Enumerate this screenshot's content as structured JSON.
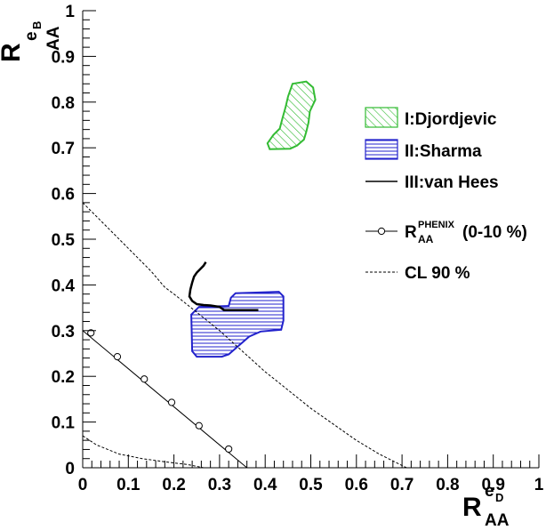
{
  "chart_data": {
    "type": "scatter",
    "xlim": [
      0,
      1
    ],
    "ylim": [
      0,
      1
    ],
    "x_ticks": [
      "0",
      "0.1",
      "0.2",
      "0.3",
      "0.4",
      "0.5",
      "0.6",
      "0.7",
      "0.8",
      "0.9",
      "1"
    ],
    "y_ticks": [
      "0",
      "0.1",
      "0.2",
      "0.3",
      "0.4",
      "0.5",
      "0.6",
      "0.7",
      "0.8",
      "0.9",
      "1"
    ],
    "x_axis_label": {
      "main": "R",
      "sub": "AA",
      "sup": "e",
      "sup_sub": "D"
    },
    "y_axis_label": {
      "main": "R",
      "sub": "AA",
      "sup": "e",
      "sup_sub": "B"
    },
    "grid": false,
    "legend_position": "right",
    "legend": [
      {
        "id": "djordjevic",
        "label": "I:Djordjevic"
      },
      {
        "id": "sharma",
        "label": "II:Sharma"
      },
      {
        "id": "vanhees",
        "label": "III:van Hees"
      },
      {
        "id": "phenix",
        "label_main": "R",
        "label_sup": "PHENIX",
        "label_sub": "AA",
        "label_suffix": "(0-10 %)"
      },
      {
        "id": "cl90",
        "label": "CL 90 %"
      }
    ],
    "series": [
      {
        "name": "I:Djordjevic",
        "kind": "hatched-region",
        "color": "#33bb33",
        "polygon": [
          [
            0.46,
            0.84
          ],
          [
            0.49,
            0.845
          ],
          [
            0.505,
            0.832
          ],
          [
            0.51,
            0.805
          ],
          [
            0.498,
            0.78
          ],
          [
            0.495,
            0.755
          ],
          [
            0.49,
            0.735
          ],
          [
            0.485,
            0.718
          ],
          [
            0.47,
            0.705
          ],
          [
            0.455,
            0.698
          ],
          [
            0.41,
            0.697
          ],
          [
            0.405,
            0.71
          ],
          [
            0.418,
            0.728
          ],
          [
            0.432,
            0.742
          ],
          [
            0.438,
            0.765
          ],
          [
            0.445,
            0.79
          ],
          [
            0.45,
            0.812
          ]
        ]
      },
      {
        "name": "II:Sharma",
        "kind": "hatched-region",
        "color": "#2222cc",
        "polygon": [
          [
            0.335,
            0.382
          ],
          [
            0.43,
            0.385
          ],
          [
            0.44,
            0.375
          ],
          [
            0.44,
            0.322
          ],
          [
            0.435,
            0.302
          ],
          [
            0.39,
            0.298
          ],
          [
            0.365,
            0.287
          ],
          [
            0.32,
            0.248
          ],
          [
            0.305,
            0.243
          ],
          [
            0.25,
            0.243
          ],
          [
            0.24,
            0.255
          ],
          [
            0.238,
            0.335
          ],
          [
            0.255,
            0.352
          ],
          [
            0.32,
            0.354
          ],
          [
            0.325,
            0.372
          ]
        ]
      },
      {
        "name": "III:van Hees",
        "kind": "line",
        "color": "#000000",
        "points": [
          [
            0.27,
            0.45
          ],
          [
            0.265,
            0.442
          ],
          [
            0.258,
            0.435
          ],
          [
            0.25,
            0.427
          ],
          [
            0.244,
            0.418
          ],
          [
            0.24,
            0.405
          ],
          [
            0.236,
            0.39
          ],
          [
            0.234,
            0.375
          ],
          [
            0.24,
            0.365
          ],
          [
            0.25,
            0.358
          ],
          [
            0.265,
            0.356
          ],
          [
            0.28,
            0.355
          ],
          [
            0.3,
            0.352
          ],
          [
            0.31,
            0.345
          ],
          [
            0.33,
            0.345
          ],
          [
            0.36,
            0.345
          ],
          [
            0.385,
            0.345
          ]
        ]
      },
      {
        "name": "R_AA^PHENIX (0-10 %)",
        "kind": "line-markers",
        "color": "#000000",
        "line": [
          [
            0,
            0.3
          ],
          [
            0.36,
            0.0
          ]
        ],
        "points": [
          [
            0.018,
            0.295
          ],
          [
            0.076,
            0.243
          ],
          [
            0.135,
            0.194
          ],
          [
            0.195,
            0.143
          ],
          [
            0.255,
            0.092
          ],
          [
            0.32,
            0.041
          ]
        ]
      },
      {
        "name": "CL 90 % (upper)",
        "kind": "dashed-line",
        "color": "#000000",
        "points": [
          [
            0,
            0.58
          ],
          [
            0.02,
            0.56
          ],
          [
            0.05,
            0.53
          ],
          [
            0.1,
            0.48
          ],
          [
            0.15,
            0.43
          ],
          [
            0.18,
            0.395
          ],
          [
            0.2,
            0.38
          ],
          [
            0.25,
            0.34
          ],
          [
            0.3,
            0.3
          ],
          [
            0.35,
            0.255
          ],
          [
            0.4,
            0.21
          ],
          [
            0.45,
            0.17
          ],
          [
            0.5,
            0.13
          ],
          [
            0.55,
            0.095
          ],
          [
            0.6,
            0.06
          ],
          [
            0.65,
            0.03
          ],
          [
            0.69,
            0.01
          ],
          [
            0.71,
            0.0
          ]
        ]
      },
      {
        "name": "CL 90 % (lower)",
        "kind": "dashed-line",
        "color": "#000000",
        "points": [
          [
            0,
            0.07
          ],
          [
            0.03,
            0.05
          ],
          [
            0.08,
            0.03
          ],
          [
            0.13,
            0.02
          ],
          [
            0.18,
            0.013
          ],
          [
            0.23,
            0.007
          ],
          [
            0.265,
            0.0
          ]
        ]
      }
    ]
  }
}
